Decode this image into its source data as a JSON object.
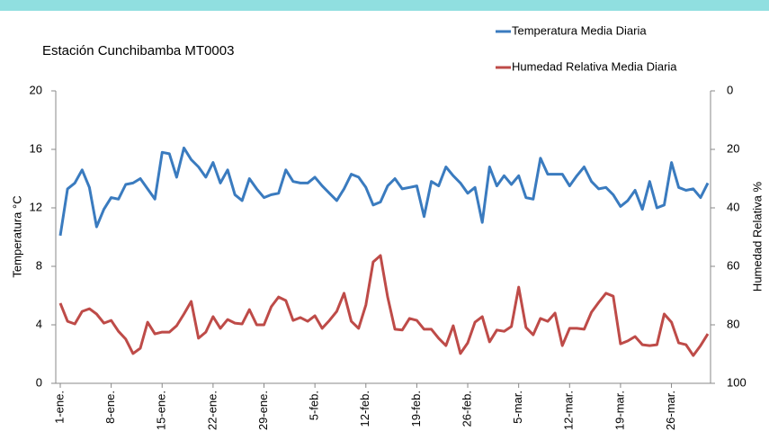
{
  "chart_data": {
    "type": "line",
    "title": "Estación Cunchibamba  MT0003",
    "ylabel": "Temperatura °C",
    "y2label": "Humedad Relativa %",
    "categories": [
      "1-ene.",
      null,
      null,
      null,
      null,
      null,
      null,
      "8-ene.",
      null,
      null,
      null,
      null,
      null,
      null,
      "15-ene.",
      null,
      null,
      null,
      null,
      null,
      null,
      "22-ene.",
      null,
      null,
      null,
      null,
      null,
      null,
      "29-ene.",
      null,
      null,
      null,
      null,
      null,
      null,
      "5-feb.",
      null,
      null,
      null,
      null,
      null,
      null,
      "12-feb.",
      null,
      null,
      null,
      null,
      null,
      null,
      "19-feb.",
      null,
      null,
      null,
      null,
      null,
      null,
      "26-feb.",
      null,
      null,
      null,
      null,
      null,
      null,
      "5-mar.",
      null,
      null,
      null,
      null,
      null,
      null,
      "12-mar.",
      null,
      null,
      null,
      null,
      null,
      null,
      "19-mar.",
      null,
      null,
      null,
      null,
      null,
      null,
      "26-mar.",
      null,
      null,
      null,
      null,
      null
    ],
    "series": [
      {
        "name": "Temperatura Media Diaria",
        "color": "#3a7bbf",
        "axis": "y",
        "values": [
          10.1,
          13.3,
          13.7,
          14.6,
          13.4,
          10.7,
          11.9,
          12.7,
          12.6,
          13.6,
          13.7,
          14.0,
          13.3,
          12.6,
          15.8,
          15.7,
          14.1,
          16.1,
          15.3,
          14.8,
          14.1,
          15.1,
          13.7,
          14.6,
          12.9,
          12.5,
          14.0,
          13.3,
          12.7,
          12.9,
          13.0,
          14.6,
          13.8,
          13.7,
          13.7,
          14.1,
          13.5,
          13.0,
          12.5,
          13.3,
          14.3,
          14.1,
          13.4,
          12.2,
          12.4,
          13.5,
          14.0,
          13.3,
          13.4,
          13.5,
          11.4,
          13.8,
          13.5,
          14.8,
          14.2,
          13.7,
          13.0,
          13.4,
          11.0,
          14.8,
          13.5,
          14.2,
          13.6,
          14.2,
          12.7,
          12.6,
          15.4,
          14.3,
          14.3,
          14.3,
          13.5,
          14.2,
          14.8,
          13.8,
          13.3,
          13.4,
          12.9,
          12.1,
          12.5,
          13.2,
          11.9,
          13.8,
          12.0,
          12.2,
          15.1,
          13.4,
          13.2,
          13.3,
          12.7,
          13.7
        ]
      },
      {
        "name": "Humedad Relativa Media Diaria",
        "color": "#be4b48",
        "axis": "y2",
        "values": [
          72.6,
          78.8,
          79.7,
          75.4,
          74.5,
          76.3,
          79.4,
          78.5,
          82.2,
          84.9,
          89.8,
          88.0,
          79.1,
          83.1,
          82.5,
          82.5,
          80.3,
          76.3,
          72.0,
          84.6,
          82.5,
          77.2,
          81.2,
          78.2,
          79.4,
          79.7,
          74.8,
          80.0,
          80.0,
          73.8,
          70.5,
          71.7,
          78.5,
          77.5,
          78.8,
          76.9,
          81.2,
          78.5,
          75.4,
          69.2,
          78.8,
          81.2,
          73.2,
          58.5,
          56.3,
          70.5,
          81.5,
          81.8,
          77.8,
          78.5,
          81.5,
          81.5,
          84.6,
          87.1,
          80.3,
          89.8,
          86.2,
          79.1,
          77.2,
          85.8,
          81.8,
          82.2,
          80.6,
          67.1,
          80.9,
          83.4,
          77.8,
          78.8,
          76.0,
          87.1,
          81.2,
          81.2,
          81.5,
          75.7,
          72.3,
          69.2,
          70.2,
          86.5,
          85.5,
          84.0,
          86.8,
          87.1,
          86.8,
          76.3,
          79.1,
          86.2,
          86.8,
          90.5,
          87.1,
          83.1
        ]
      }
    ],
    "ylim": [
      0,
      20
    ],
    "yticks": [
      0,
      4,
      8,
      12,
      16,
      20
    ],
    "y2lim": [
      0,
      100
    ],
    "y2ticks": [
      0,
      20,
      40,
      60,
      80,
      100
    ],
    "y2_inverted": true,
    "grid": false,
    "legend": "top-right"
  }
}
